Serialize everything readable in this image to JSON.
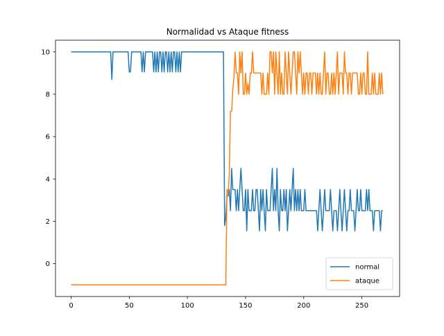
{
  "chart_data": {
    "type": "line",
    "title": "Normalidad vs Ataque fitness",
    "xlabel": "",
    "ylabel": "",
    "xlim": [
      -13.45,
      282.45
    ],
    "ylim": [
      -1.55,
      10.55
    ],
    "xticks": [
      0,
      50,
      100,
      150,
      200,
      250
    ],
    "yticks": [
      0,
      2,
      4,
      6,
      8,
      10
    ],
    "grid": false,
    "legend_position": "lower-right",
    "series": [
      {
        "name": "normal",
        "color": "#1f77b4",
        "points": [
          [
            0,
            10
          ],
          [
            34,
            10
          ],
          [
            35,
            8.7
          ],
          [
            36,
            10
          ],
          [
            49,
            10
          ],
          [
            50,
            9.05
          ],
          [
            51,
            9.05
          ],
          [
            52,
            10
          ],
          [
            60,
            10
          ],
          [
            61,
            9.05
          ],
          [
            62,
            10
          ],
          [
            63,
            9.05
          ],
          [
            64,
            10
          ],
          [
            70,
            10
          ],
          [
            71,
            9.05
          ],
          [
            72,
            10
          ],
          [
            73,
            9.05
          ],
          [
            74,
            10
          ],
          [
            75,
            9.05
          ],
          [
            76,
            10
          ],
          [
            77,
            10
          ],
          [
            78,
            9.05
          ],
          [
            79,
            10
          ],
          [
            80,
            9.05
          ],
          [
            81,
            10
          ],
          [
            82,
            10
          ],
          [
            83,
            9.05
          ],
          [
            84,
            10
          ],
          [
            85,
            9.05
          ],
          [
            86,
            10
          ],
          [
            87,
            9.05
          ],
          [
            88,
            10
          ],
          [
            89,
            10
          ],
          [
            90,
            9.05
          ],
          [
            91,
            10
          ],
          [
            92,
            9.05
          ],
          [
            93,
            10
          ],
          [
            94,
            9.05
          ],
          [
            95,
            10
          ],
          [
            131,
            10
          ],
          [
            132,
            1.8
          ],
          [
            133,
            2.2
          ],
          [
            134,
            3.2
          ],
          [
            135,
            3.2
          ],
          [
            136,
            3.5
          ],
          [
            137,
            2.5
          ],
          [
            138,
            4.5
          ],
          [
            139,
            3.5
          ],
          [
            140,
            3.5
          ],
          [
            141,
            3.5
          ],
          [
            142,
            2.5
          ],
          [
            143,
            3.5
          ],
          [
            144,
            2.5
          ],
          [
            145,
            3.5
          ],
          [
            146,
            4.5
          ],
          [
            147,
            3.5
          ],
          [
            148,
            2.5
          ],
          [
            149,
            2.5
          ],
          [
            150,
            3.5
          ],
          [
            151,
            1.55
          ],
          [
            152,
            3.5
          ],
          [
            153,
            2.5
          ],
          [
            154,
            2.5
          ],
          [
            155,
            2.5
          ],
          [
            156,
            3.5
          ],
          [
            157,
            2.5
          ],
          [
            158,
            2.5
          ],
          [
            159,
            3.5
          ],
          [
            160,
            3.5
          ],
          [
            161,
            2.5
          ],
          [
            162,
            1.55
          ],
          [
            163,
            3.5
          ],
          [
            164,
            2.5
          ],
          [
            165,
            3.5
          ],
          [
            166,
            2.5
          ],
          [
            167,
            1.55
          ],
          [
            168,
            3.5
          ],
          [
            169,
            2.5
          ],
          [
            170,
            2.5
          ],
          [
            171,
            2.5
          ],
          [
            172,
            3.5
          ],
          [
            173,
            4.5
          ],
          [
            174,
            2.5
          ],
          [
            175,
            3.5
          ],
          [
            176,
            2.5
          ],
          [
            177,
            4.5
          ],
          [
            178,
            2.5
          ],
          [
            179,
            1.55
          ],
          [
            180,
            3.5
          ],
          [
            181,
            2.5
          ],
          [
            182,
            2.5
          ],
          [
            183,
            3.5
          ],
          [
            184,
            2.5
          ],
          [
            185,
            3.5
          ],
          [
            186,
            1.55
          ],
          [
            187,
            2.5
          ],
          [
            188,
            3.5
          ],
          [
            189,
            2.5
          ],
          [
            190,
            3.5
          ],
          [
            191,
            4.5
          ],
          [
            192,
            2.5
          ],
          [
            193,
            3.5
          ],
          [
            194,
            2.5
          ],
          [
            195,
            3.5
          ],
          [
            196,
            2.5
          ],
          [
            197,
            3.5
          ],
          [
            198,
            2.5
          ],
          [
            199,
            2.5
          ],
          [
            200,
            2.5
          ],
          [
            201,
            3.5
          ],
          [
            202,
            2.5
          ],
          [
            203,
            2.5
          ],
          [
            204,
            2.5
          ],
          [
            205,
            2.5
          ],
          [
            206,
            2.5
          ],
          [
            207,
            2.5
          ],
          [
            208,
            2.5
          ],
          [
            209,
            2.5
          ],
          [
            210,
            2.5
          ],
          [
            211,
            2.5
          ],
          [
            212,
            1.55
          ],
          [
            213,
            2.5
          ],
          [
            214,
            3.5
          ],
          [
            215,
            2.5
          ],
          [
            216,
            1.55
          ],
          [
            217,
            2.5
          ],
          [
            218,
            3.5
          ],
          [
            219,
            2.5
          ],
          [
            220,
            2.5
          ],
          [
            221,
            2.5
          ],
          [
            222,
            2.5
          ],
          [
            223,
            3.5
          ],
          [
            224,
            2.5
          ],
          [
            225,
            1.55
          ],
          [
            226,
            2.5
          ],
          [
            227,
            2.5
          ],
          [
            228,
            2.5
          ],
          [
            229,
            1.55
          ],
          [
            230,
            2.5
          ],
          [
            231,
            3.5
          ],
          [
            232,
            2.5
          ],
          [
            233,
            1.55
          ],
          [
            234,
            2.5
          ],
          [
            235,
            3.5
          ],
          [
            236,
            2.5
          ],
          [
            237,
            1.55
          ],
          [
            238,
            2.5
          ],
          [
            239,
            2.5
          ],
          [
            240,
            3.5
          ],
          [
            241,
            2.5
          ],
          [
            242,
            2.5
          ],
          [
            243,
            2.5
          ],
          [
            244,
            1.55
          ],
          [
            245,
            2.5
          ],
          [
            246,
            3.5
          ],
          [
            247,
            2.5
          ],
          [
            248,
            2.5
          ],
          [
            249,
            3.5
          ],
          [
            250,
            2.5
          ],
          [
            251,
            2.5
          ],
          [
            252,
            2.5
          ],
          [
            253,
            2.5
          ],
          [
            254,
            3.5
          ],
          [
            255,
            2.5
          ],
          [
            256,
            3.5
          ],
          [
            257,
            2.5
          ],
          [
            258,
            2.5
          ],
          [
            259,
            2.5
          ],
          [
            260,
            1.55
          ],
          [
            261,
            2.5
          ],
          [
            262,
            2.5
          ],
          [
            263,
            2.5
          ],
          [
            264,
            2.5
          ],
          [
            265,
            2.5
          ],
          [
            266,
            1.55
          ],
          [
            267,
            2.5
          ],
          [
            268,
            2.5
          ]
        ]
      },
      {
        "name": "ataque",
        "color": "#ff7f0e",
        "points": [
          [
            0,
            -1
          ],
          [
            133,
            -1
          ],
          [
            134,
            3.5
          ],
          [
            135,
            3.3
          ],
          [
            136,
            4.2
          ],
          [
            137,
            7.2
          ],
          [
            138,
            7.2
          ],
          [
            139,
            8.2
          ],
          [
            140,
            8.8
          ],
          [
            141,
            10
          ],
          [
            142,
            9
          ],
          [
            143,
            9
          ],
          [
            144,
            8
          ],
          [
            145,
            10
          ],
          [
            146,
            9
          ],
          [
            147,
            10
          ],
          [
            148,
            8
          ],
          [
            149,
            8
          ],
          [
            150,
            9
          ],
          [
            151,
            8
          ],
          [
            152,
            8.5
          ],
          [
            153,
            8
          ],
          [
            154,
            9
          ],
          [
            155,
            9
          ],
          [
            156,
            10
          ],
          [
            157,
            9
          ],
          [
            158,
            9
          ],
          [
            159,
            9
          ],
          [
            160,
            9
          ],
          [
            161,
            9
          ],
          [
            162,
            9
          ],
          [
            163,
            9
          ],
          [
            164,
            8
          ],
          [
            165,
            9
          ],
          [
            166,
            8
          ],
          [
            167,
            8
          ],
          [
            168,
            8
          ],
          [
            169,
            9
          ],
          [
            170,
            8
          ],
          [
            171,
            10
          ],
          [
            172,
            10
          ],
          [
            173,
            9
          ],
          [
            174,
            10
          ],
          [
            175,
            8
          ],
          [
            176,
            10
          ],
          [
            177,
            9
          ],
          [
            178,
            8
          ],
          [
            179,
            10
          ],
          [
            180,
            8
          ],
          [
            181,
            9
          ],
          [
            182,
            8
          ],
          [
            183,
            8
          ],
          [
            184,
            10
          ],
          [
            185,
            9
          ],
          [
            186,
            8
          ],
          [
            187,
            10
          ],
          [
            188,
            9
          ],
          [
            189,
            8
          ],
          [
            190,
            9
          ],
          [
            191,
            10
          ],
          [
            192,
            10
          ],
          [
            193,
            9
          ],
          [
            194,
            8
          ],
          [
            195,
            10
          ],
          [
            196,
            9
          ],
          [
            197,
            10
          ],
          [
            198,
            9
          ],
          [
            199,
            8
          ],
          [
            200,
            9
          ],
          [
            201,
            8
          ],
          [
            202,
            9
          ],
          [
            203,
            9
          ],
          [
            204,
            8
          ],
          [
            205,
            9
          ],
          [
            206,
            9
          ],
          [
            207,
            8
          ],
          [
            208,
            9
          ],
          [
            209,
            9
          ],
          [
            210,
            9
          ],
          [
            211,
            8
          ],
          [
            212,
            9
          ],
          [
            213,
            8
          ],
          [
            214,
            9
          ],
          [
            215,
            8
          ],
          [
            216,
            8
          ],
          [
            217,
            9
          ],
          [
            218,
            10
          ],
          [
            219,
            8
          ],
          [
            220,
            9
          ],
          [
            221,
            9
          ],
          [
            222,
            8
          ],
          [
            223,
            8
          ],
          [
            224,
            9
          ],
          [
            225,
            8
          ],
          [
            226,
            9
          ],
          [
            227,
            8
          ],
          [
            228,
            9
          ],
          [
            229,
            10
          ],
          [
            230,
            8
          ],
          [
            231,
            9
          ],
          [
            232,
            9
          ],
          [
            233,
            9
          ],
          [
            234,
            8
          ],
          [
            235,
            10
          ],
          [
            236,
            9
          ],
          [
            237,
            9
          ],
          [
            238,
            8
          ],
          [
            239,
            9
          ],
          [
            240,
            9
          ],
          [
            241,
            8
          ],
          [
            242,
            9
          ],
          [
            243,
            9
          ],
          [
            244,
            9
          ],
          [
            245,
            9
          ],
          [
            246,
            9
          ],
          [
            247,
            8
          ],
          [
            248,
            8
          ],
          [
            249,
            9
          ],
          [
            250,
            8
          ],
          [
            251,
            9
          ],
          [
            252,
            9
          ],
          [
            253,
            8
          ],
          [
            254,
            8
          ],
          [
            255,
            10
          ],
          [
            256,
            8
          ],
          [
            257,
            8
          ],
          [
            258,
            8
          ],
          [
            259,
            9
          ],
          [
            260,
            8
          ],
          [
            261,
            9
          ],
          [
            262,
            8
          ],
          [
            263,
            8
          ],
          [
            264,
            8
          ],
          [
            265,
            9
          ],
          [
            266,
            8
          ],
          [
            267,
            9
          ],
          [
            268,
            8
          ]
        ]
      }
    ]
  }
}
